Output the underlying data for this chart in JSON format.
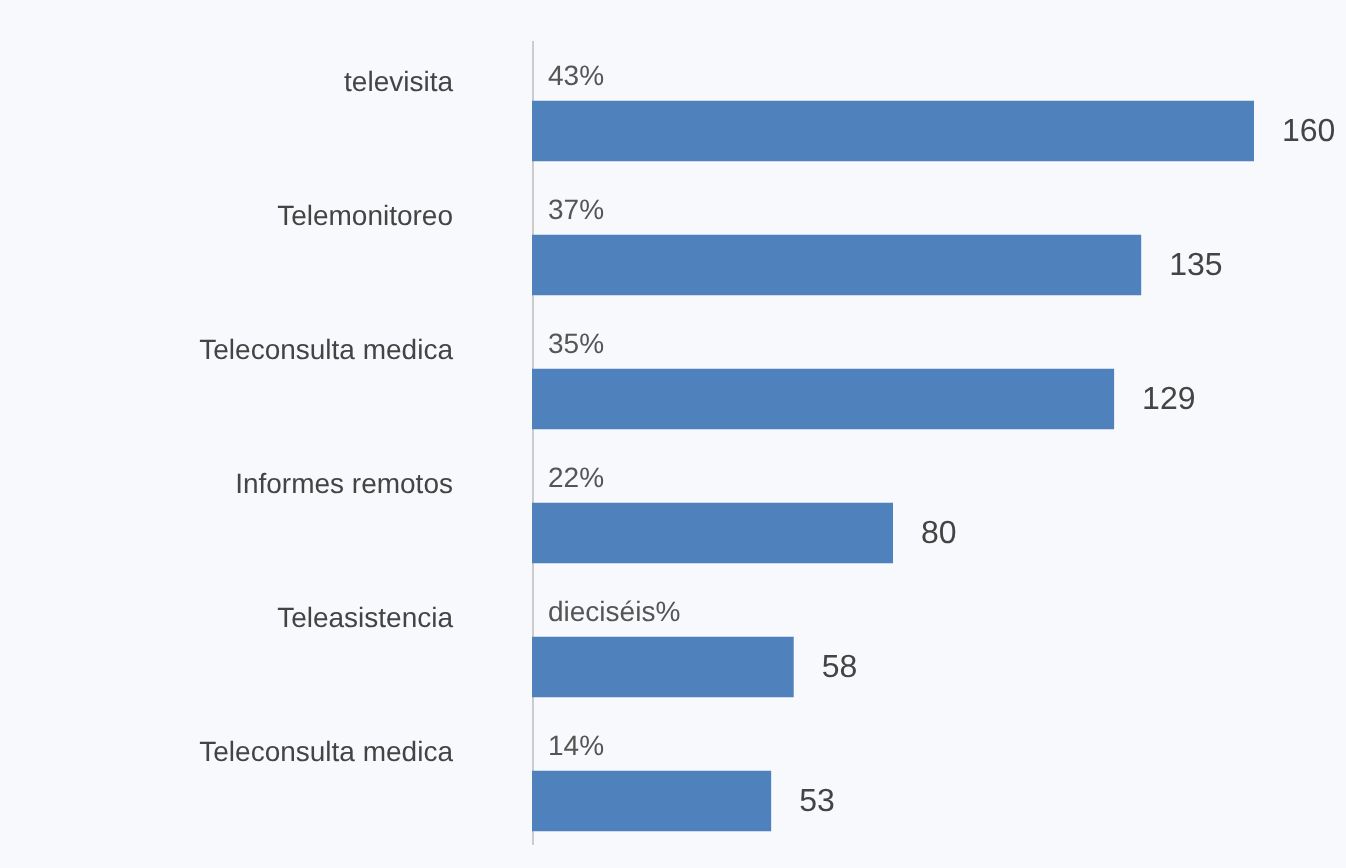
{
  "chart_data": {
    "type": "bar",
    "orientation": "horizontal",
    "categories": [
      "televisita",
      "Telemonitoreo",
      "Teleconsulta medica",
      "Informes remotos",
      "Teleasistencia",
      "Teleconsulta medica"
    ],
    "values": [
      160,
      135,
      129,
      80,
      58,
      53
    ],
    "color": "#4f81bd",
    "data_labels": true,
    "annotations": [
      "43%",
      "37%",
      "35%",
      "22%",
      "dieciséis%",
      "14%"
    ]
  }
}
